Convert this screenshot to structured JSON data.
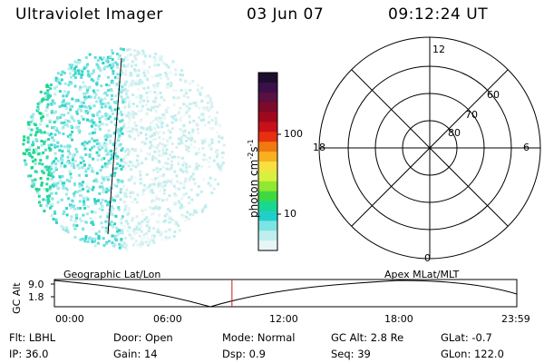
{
  "header": {
    "title": "Ultraviolet Imager",
    "date": "03 Jun 07",
    "time": "09:12:24 UT"
  },
  "colorbar": {
    "label": "photon cm",
    "label_sup1": "-2",
    "label_mid": "s",
    "label_sup2": "-1",
    "ticks": [
      "100",
      "10"
    ],
    "colors": [
      "#1b0d2e",
      "#3a0f4a",
      "#5a1040",
      "#7e0a2a",
      "#a0081e",
      "#c8101a",
      "#e83010",
      "#f07a10",
      "#f8b020",
      "#f8e040",
      "#d8f040",
      "#90e830",
      "#40d840",
      "#18d890",
      "#20d0c8",
      "#7ce4e4",
      "#bfeeee",
      "#e6f6f6"
    ]
  },
  "polar": {
    "mlt_labels": [
      "12",
      "18",
      "6",
      "0"
    ],
    "lat_labels": [
      "60",
      "70",
      "80"
    ]
  },
  "timeline": {
    "left_label": "Geographic Lat/Lon",
    "right_label": "Apex  MLat/MLT",
    "axis_title": "GC Alt",
    "y_ticks": [
      "9.0",
      "1.8"
    ],
    "x_ticks": [
      "00:00",
      "06:00",
      "12:00",
      "18:00",
      "23:59"
    ],
    "current_time_fraction": 0.384,
    "marker_color": "#c81e1e"
  },
  "info": {
    "flt": "Flt: LBHL",
    "door": "Door: Open",
    "mode": "Mode: Normal",
    "gc_alt": "GC Alt: 2.8 Re",
    "glat": "GLat:  -0.7",
    "ip": "IP: 36.0",
    "gain": "Gain: 14",
    "dsp": "Dsp:     0.9",
    "seq": "Seq: 39",
    "glon": "GLon: 122.0"
  }
}
